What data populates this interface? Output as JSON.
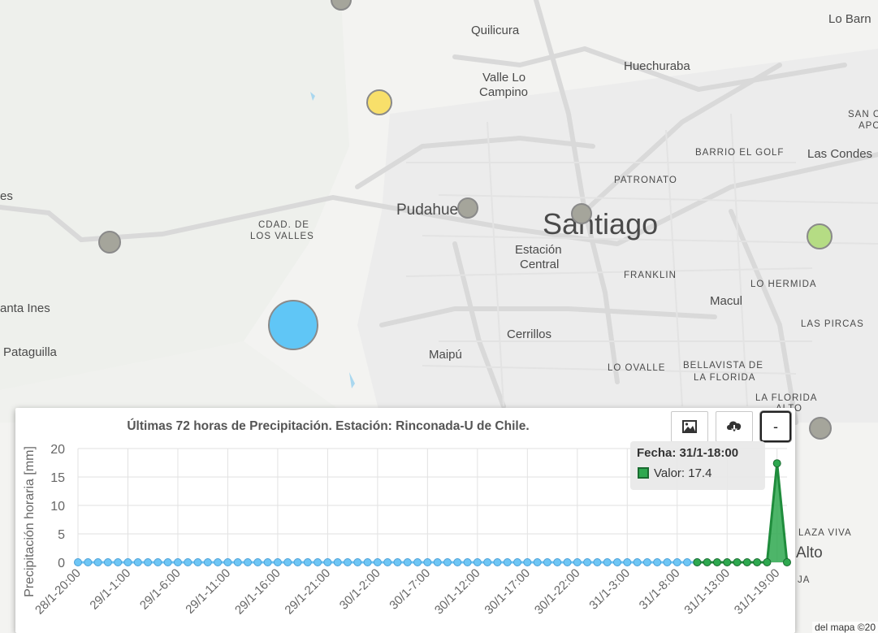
{
  "map": {
    "labels": {
      "quilicura": "Quilicura",
      "lo_barn": "Lo Barn",
      "huechuraba": "Huechuraba",
      "valle_lo_campino_1": "Valle Lo",
      "valle_lo_campino_2": "Campino",
      "san_c_1": "SAN C",
      "san_c_2": "APO",
      "barrio_el_golf": "BARRIO EL GOLF",
      "las_condes": "Las Condes",
      "patronato": "PATRONATO",
      "pudahuel": "Pudahuel",
      "santiago": "Santiago",
      "es": "es",
      "cdad_de": "CDAD. DE",
      "los_valles": "LOS VALLES",
      "estacion": "Estación",
      "central": "Central",
      "franklin": "FRANKLIN",
      "lo_hermida": "LO HERMIDA",
      "macul": "Macul",
      "santa_ines": "anta Ines",
      "las_pircas": "LAS PIRCAS",
      "cerrillos": "Cerrillos",
      "pataguilla": "Pataguilla",
      "maipu": "Maipú",
      "lo_ovalle": "LO OVALLE",
      "bellavista_1": "BELLAVISTA DE",
      "bellavista_2": "LA FLORIDA",
      "la_florida_alto_1": "LA FLORIDA",
      "la_florida_alto_2": "ALTO",
      "plaza_viva": "LAZA VIVA",
      "alto": "Alto",
      "ja": "JA"
    },
    "credit": "del mapa ©20"
  },
  "chart_panel": {
    "title": "Últimas 72 horas de Precipitación. Estación: Rinconada-U de Chile.",
    "buttons": {
      "image_icon": "image-icon",
      "download_icon": "cloud-download-icon",
      "minimize_label": "-"
    },
    "tooltip": {
      "date": "Fecha: 31/1-18:00",
      "value": "Valor: 17.4"
    }
  },
  "chart_data": {
    "type": "area",
    "title": "Últimas 72 horas de Precipitación. Estación: Rinconada-U de Chile.",
    "ylabel": "Precipitación horaria [mm]",
    "xlabel": "",
    "ylim": [
      0,
      20
    ],
    "yticks": [
      "0",
      "5",
      "10",
      "15",
      "20"
    ],
    "grid": true,
    "x_tick_labels": [
      "28/1-20:00",
      "29/1-1:00",
      "29/1-6:00",
      "29/1-11:00",
      "29/1-16:00",
      "29/1-21:00",
      "30/1-2:00",
      "30/1-7:00",
      "30/1-12:00",
      "30/1-17:00",
      "30/1-22:00",
      "31/1-3:00",
      "31/1-8:00",
      "31/1-13:00",
      "31/1-19:00"
    ],
    "series": [
      {
        "color": "#6ec6f5",
        "values": [
          0,
          0,
          0,
          0,
          0,
          0,
          0,
          0,
          0,
          0,
          0,
          0,
          0,
          0,
          0,
          0,
          0,
          0,
          0,
          0,
          0,
          0,
          0,
          0,
          0,
          0,
          0,
          0,
          0,
          0,
          0,
          0,
          0,
          0,
          0,
          0,
          0,
          0,
          0,
          0,
          0,
          0,
          0,
          0,
          0,
          0,
          0,
          0,
          0,
          0,
          0,
          0,
          0,
          0,
          0,
          0,
          0,
          0,
          0,
          0,
          0,
          0,
          0
        ]
      },
      {
        "color": "#2ea84f",
        "values": [
          0,
          0,
          0,
          0,
          0,
          0,
          0,
          0,
          17.4,
          0
        ]
      }
    ]
  }
}
